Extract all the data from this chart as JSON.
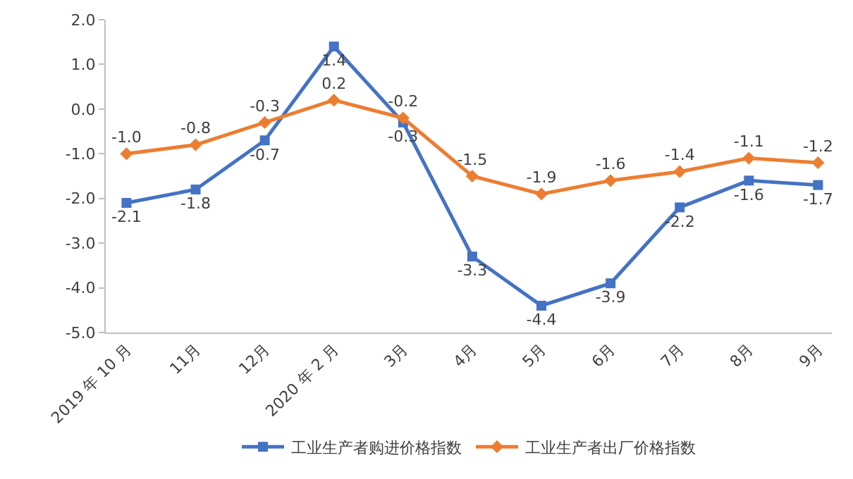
{
  "chart_data": {
    "type": "line",
    "categories": [
      "2019 年 10 月",
      "11月",
      "12月",
      "2020 年 2 月",
      "3月",
      "4月",
      "5月",
      "6月",
      "7月",
      "8月",
      "9月"
    ],
    "series": [
      {
        "name": "工业生产者购进价格指数",
        "color": "#4472c4",
        "marker": "square",
        "values": [
          -2.1,
          -1.8,
          -0.7,
          1.4,
          -0.3,
          -3.3,
          -4.4,
          -3.9,
          -2.2,
          -1.6,
          -1.7
        ],
        "value_labels": [
          "-2.1",
          "-1.8",
          "-0.7",
          "1.4",
          "-0.3",
          "-3.3",
          "-4.4",
          "-3.9",
          "-2.2",
          "-1.6",
          "-1.7"
        ]
      },
      {
        "name": "工业生产者出厂价格指数",
        "color": "#ed7d31",
        "marker": "diamond",
        "values": [
          -1.0,
          -0.8,
          -0.3,
          0.2,
          -0.2,
          -1.5,
          -1.9,
          -1.6,
          -1.4,
          -1.1,
          -1.2
        ],
        "value_labels": [
          "-1.0",
          "-0.8",
          "-0.3",
          "0.2",
          "-0.2",
          "-1.5",
          "-1.9",
          "-1.6",
          "-1.4",
          "-1.1",
          "-1.2"
        ]
      }
    ],
    "ylim": [
      -5.0,
      2.0
    ],
    "yticks": [
      {
        "value": -5,
        "label": "-5.0"
      },
      {
        "value": -4,
        "label": "-4.0"
      },
      {
        "value": -3,
        "label": "-3.0"
      },
      {
        "value": -2,
        "label": "-2.0"
      },
      {
        "value": -1,
        "label": "-1.0"
      },
      {
        "value": 0,
        "label": "0.0"
      },
      {
        "value": 1,
        "label": "1.0"
      },
      {
        "value": 2,
        "label": "2.0"
      }
    ],
    "legend": "bottom",
    "line_style": "solid"
  }
}
